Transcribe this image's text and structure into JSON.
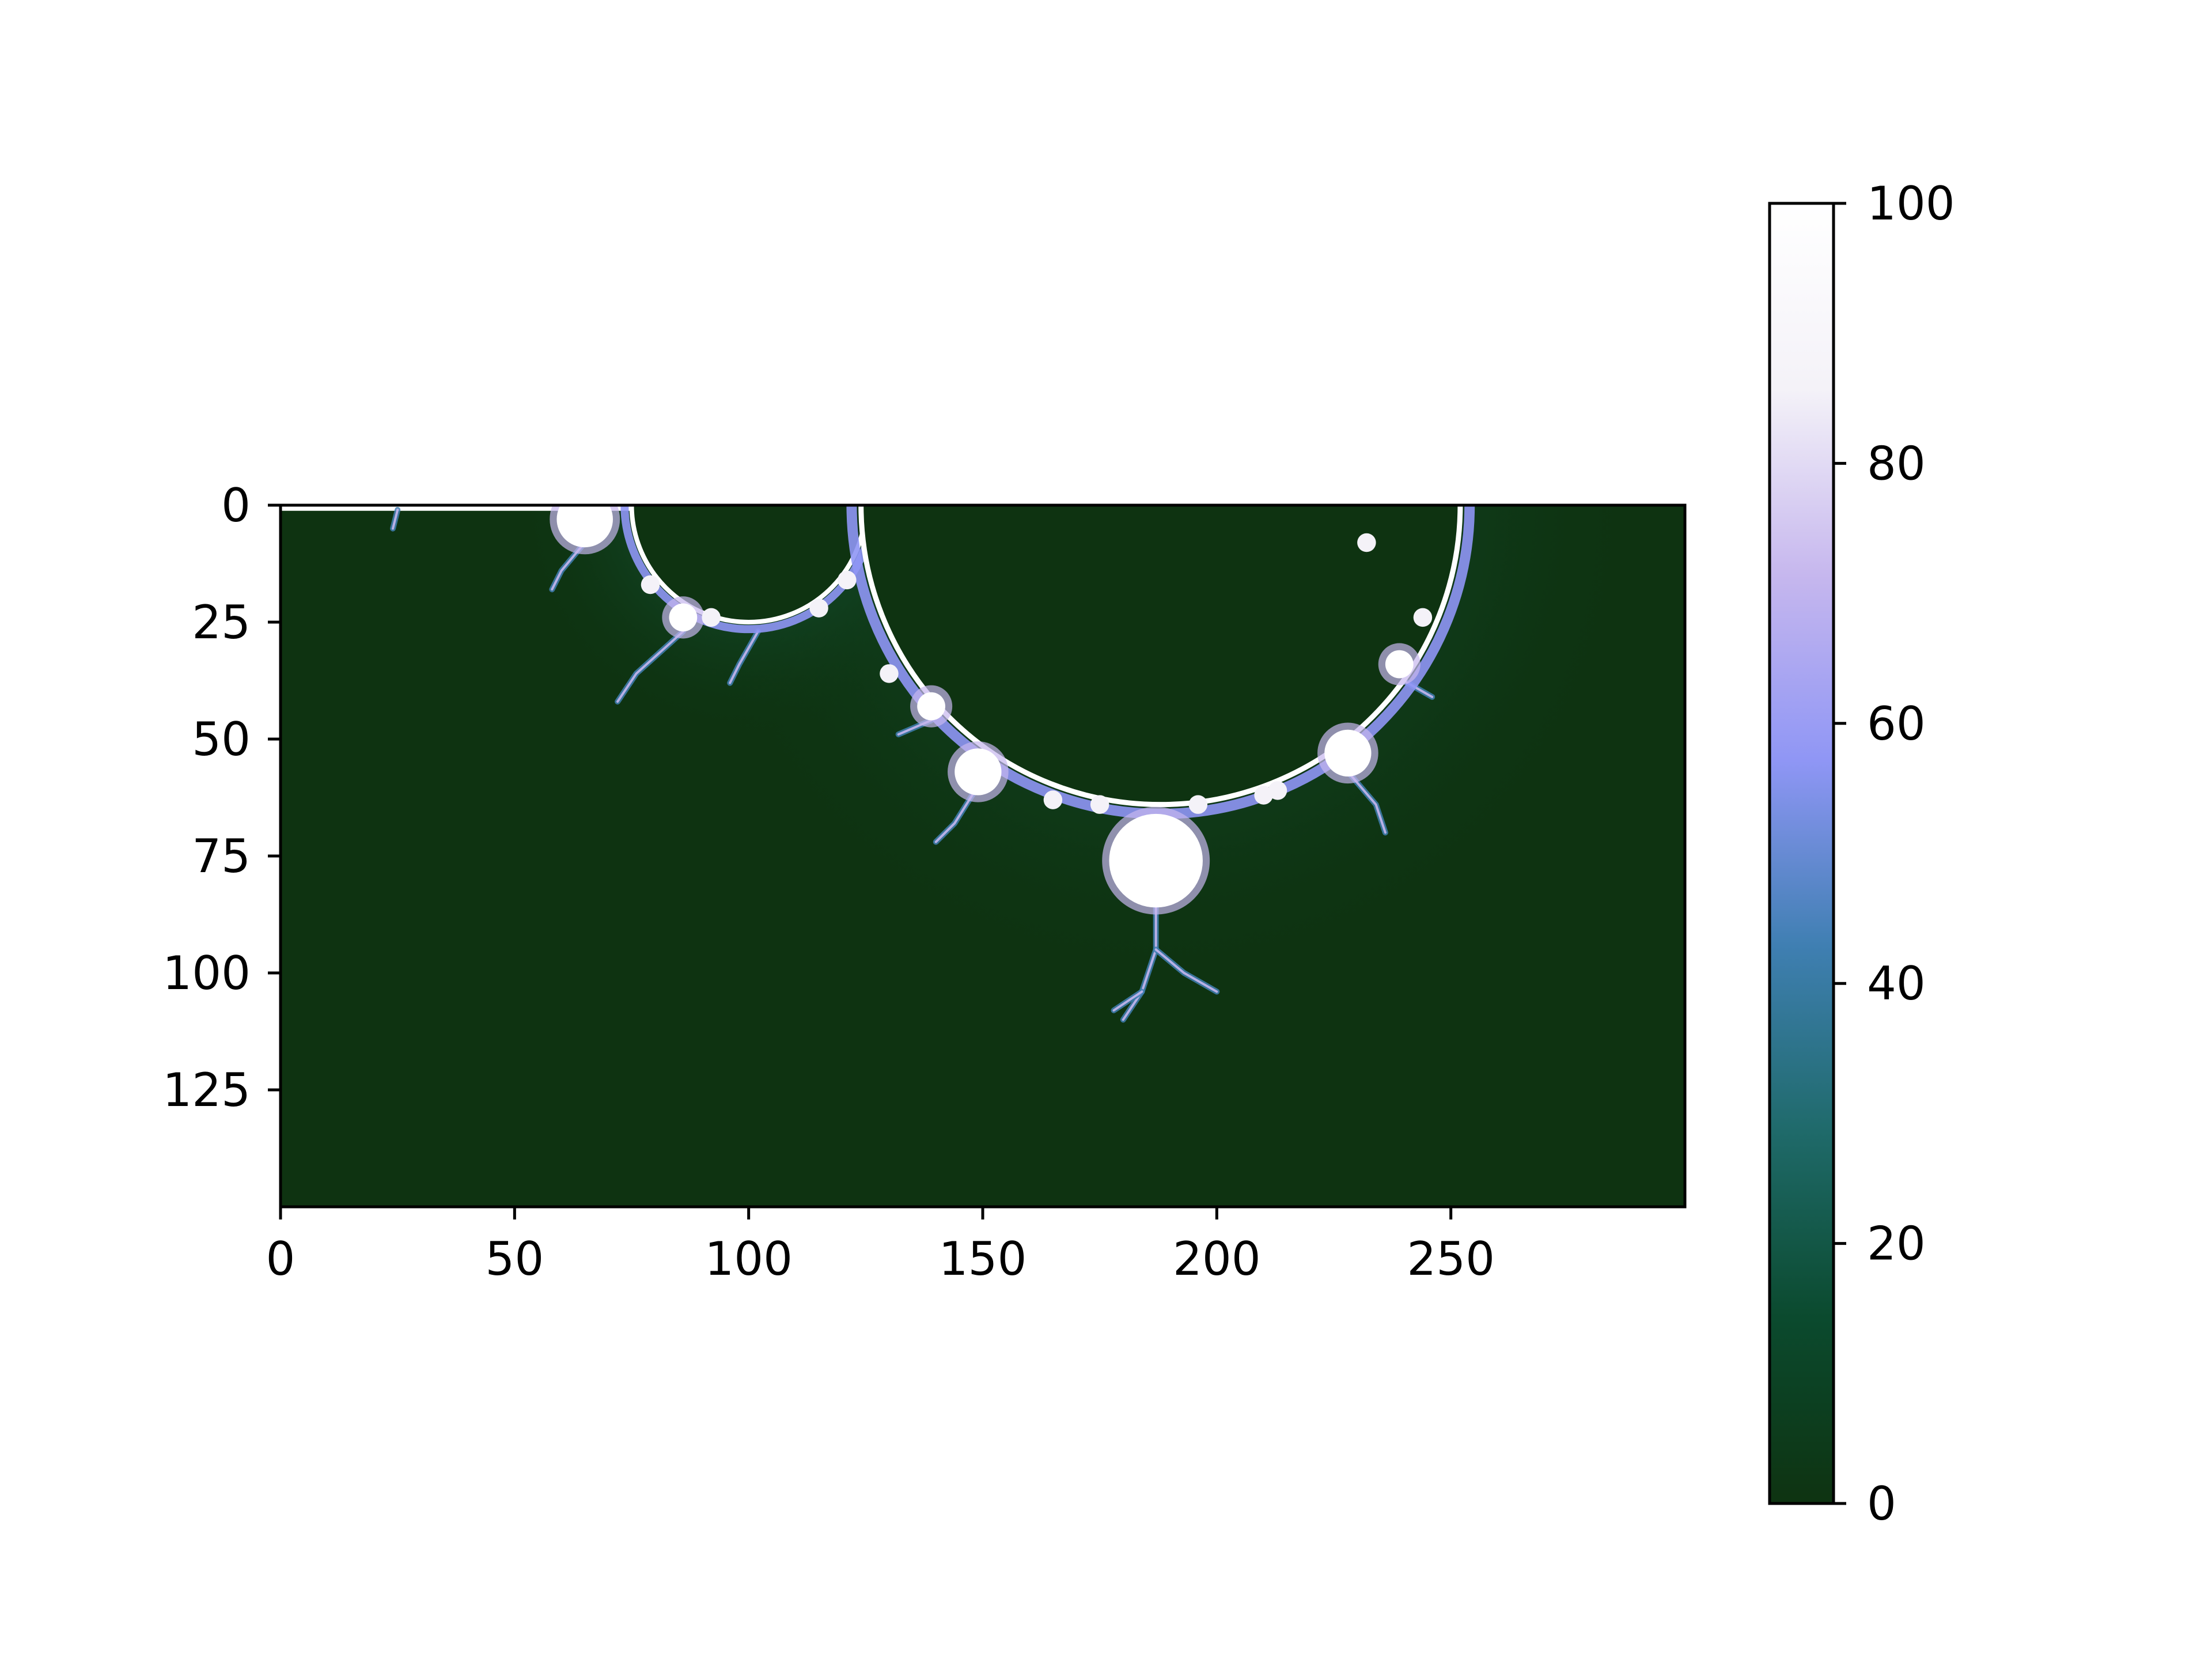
{
  "chart_data": [
    {
      "type": "heatmap",
      "title": "",
      "xlabel": "",
      "ylabel": "",
      "description_kind": "image (imshow), Mandelbrot escape-time iteration counts",
      "x_range": [
        0,
        300
      ],
      "y_range": [
        0,
        150
      ],
      "y_axis_direction": "downward (origin at top)",
      "x_ticks": [
        0,
        50,
        100,
        150,
        200,
        250
      ],
      "x_tick_labels": [
        "0",
        "50",
        "100",
        "150",
        "200",
        "250"
      ],
      "y_ticks": [
        0,
        25,
        50,
        75,
        100,
        125
      ],
      "y_tick_labels": [
        "0",
        "25",
        "50",
        "75",
        "100",
        "125"
      ],
      "grid": false,
      "colormap": "cubehelix (green → teal → blue → lavender → white)",
      "colormap_stops": [
        "#0e3311",
        "#0b4a2e",
        "#1f6a6a",
        "#3f7fb2",
        "#8f96f5",
        "#c6b7ee",
        "#f4f2f8",
        "#ffffff"
      ],
      "value_range": [
        0,
        100
      ],
      "features": {
        "dark_interior_value": 0,
        "saturated_boundary_value": 100,
        "main_cardioid_edge_circle": {
          "center": [
            188,
            0
          ],
          "radius": 64
        },
        "secondary_bulb_edge_circle": {
          "center": [
            100,
            0
          ],
          "radius": 25
        },
        "bright_blobs": [
          {
            "x": 187,
            "y": 76,
            "r": 10
          },
          {
            "x": 65,
            "y": 3,
            "r": 6
          },
          {
            "x": 149,
            "y": 57,
            "r": 5
          },
          {
            "x": 228,
            "y": 53,
            "r": 5
          },
          {
            "x": 86,
            "y": 24,
            "r": 3
          },
          {
            "x": 139,
            "y": 43,
            "r": 3
          },
          {
            "x": 239,
            "y": 34,
            "r": 3
          }
        ]
      }
    },
    {
      "type": "colorbar",
      "range": [
        0,
        100
      ],
      "ticks": [
        0,
        20,
        40,
        60,
        80,
        100
      ],
      "tick_labels": [
        "0",
        "20",
        "40",
        "60",
        "80",
        "100"
      ]
    }
  ]
}
